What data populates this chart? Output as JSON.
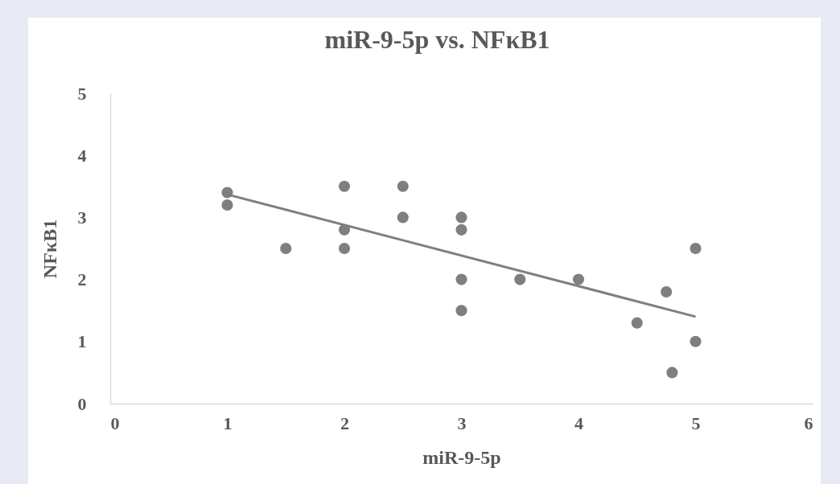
{
  "chart_data": {
    "type": "scatter",
    "title": "miR-9-5p vs. NFκB1",
    "xlabel": "miR-9-5p",
    "ylabel": "NFκB1",
    "xlim": [
      0,
      6
    ],
    "xticks": [
      0,
      1,
      2,
      3,
      4,
      5,
      6
    ],
    "ylim": [
      0,
      5
    ],
    "yticks": [
      0,
      1,
      2,
      3,
      4,
      5
    ],
    "grid": false,
    "marker": "circle",
    "series": [
      {
        "color": "#7f7f7f",
        "x": [
          1,
          1,
          1.5,
          2,
          2,
          2,
          2.5,
          2.5,
          3,
          3,
          3,
          3,
          3.5,
          4,
          4.5,
          4.75,
          4.8,
          5,
          5
        ],
        "values": [
          3.4,
          3.2,
          2.5,
          3.5,
          2.8,
          2.5,
          3.5,
          3.0,
          3.0,
          2.8,
          2.0,
          1.5,
          2.0,
          2.0,
          1.3,
          1.8,
          0.5,
          2.5,
          1.0
        ]
      },
      {
        "type": "line",
        "color": "#7f7f7f",
        "line_style": "solid",
        "marker": "none",
        "x": [
          1,
          5
        ],
        "values": [
          3.37,
          1.4
        ]
      }
    ]
  }
}
